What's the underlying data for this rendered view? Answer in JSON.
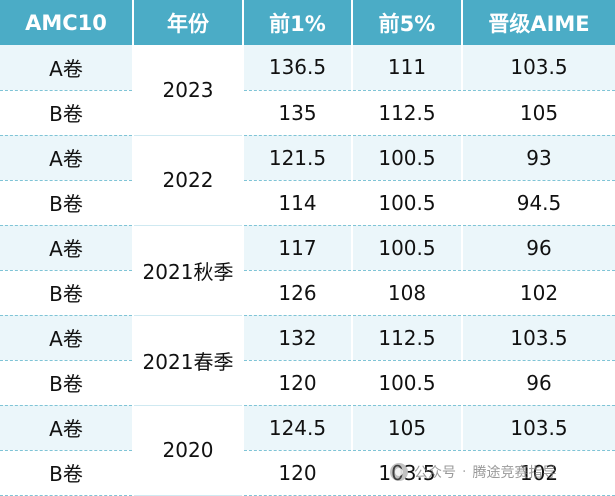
{
  "table": {
    "headers": [
      "AMC10",
      "年份",
      "前1%",
      "前5%",
      "晋级AIME"
    ],
    "groups": [
      {
        "year": "2023",
        "rows": [
          {
            "paper": "A卷",
            "top1": "136.5",
            "top5": "111",
            "aime": "103.5"
          },
          {
            "paper": "B卷",
            "top1": "135",
            "top5": "112.5",
            "aime": "105"
          }
        ]
      },
      {
        "year": "2022",
        "rows": [
          {
            "paper": "A卷",
            "top1": "121.5",
            "top5": "100.5",
            "aime": "93"
          },
          {
            "paper": "B卷",
            "top1": "114",
            "top5": "100.5",
            "aime": "94.5"
          }
        ]
      },
      {
        "year": "2021秋季",
        "rows": [
          {
            "paper": "A卷",
            "top1": "117",
            "top5": "100.5",
            "aime": "96"
          },
          {
            "paper": "B卷",
            "top1": "126",
            "top5": "108",
            "aime": "102"
          }
        ]
      },
      {
        "year": "2021春季",
        "rows": [
          {
            "paper": "A卷",
            "top1": "132",
            "top5": "112.5",
            "aime": "103.5"
          },
          {
            "paper": "B卷",
            "top1": "120",
            "top5": "100.5",
            "aime": "96"
          }
        ]
      },
      {
        "year": "2020",
        "rows": [
          {
            "paper": "A卷",
            "top1": "124.5",
            "top5": "105",
            "aime": "103.5"
          },
          {
            "paper": "B卷",
            "top1": "120",
            "top5": "103.5",
            "aime": "102"
          }
        ]
      }
    ]
  },
  "watermark": {
    "text_left": "公众号",
    "separator": "·",
    "text_right": "腾途竞赛指导",
    "icon": "wechat-icon"
  },
  "colors": {
    "header_bg": "#4bacc6",
    "header_text": "#ffffff",
    "row_alt_bg": "#ebf6fa",
    "row_divider": "#7fc4d6"
  }
}
